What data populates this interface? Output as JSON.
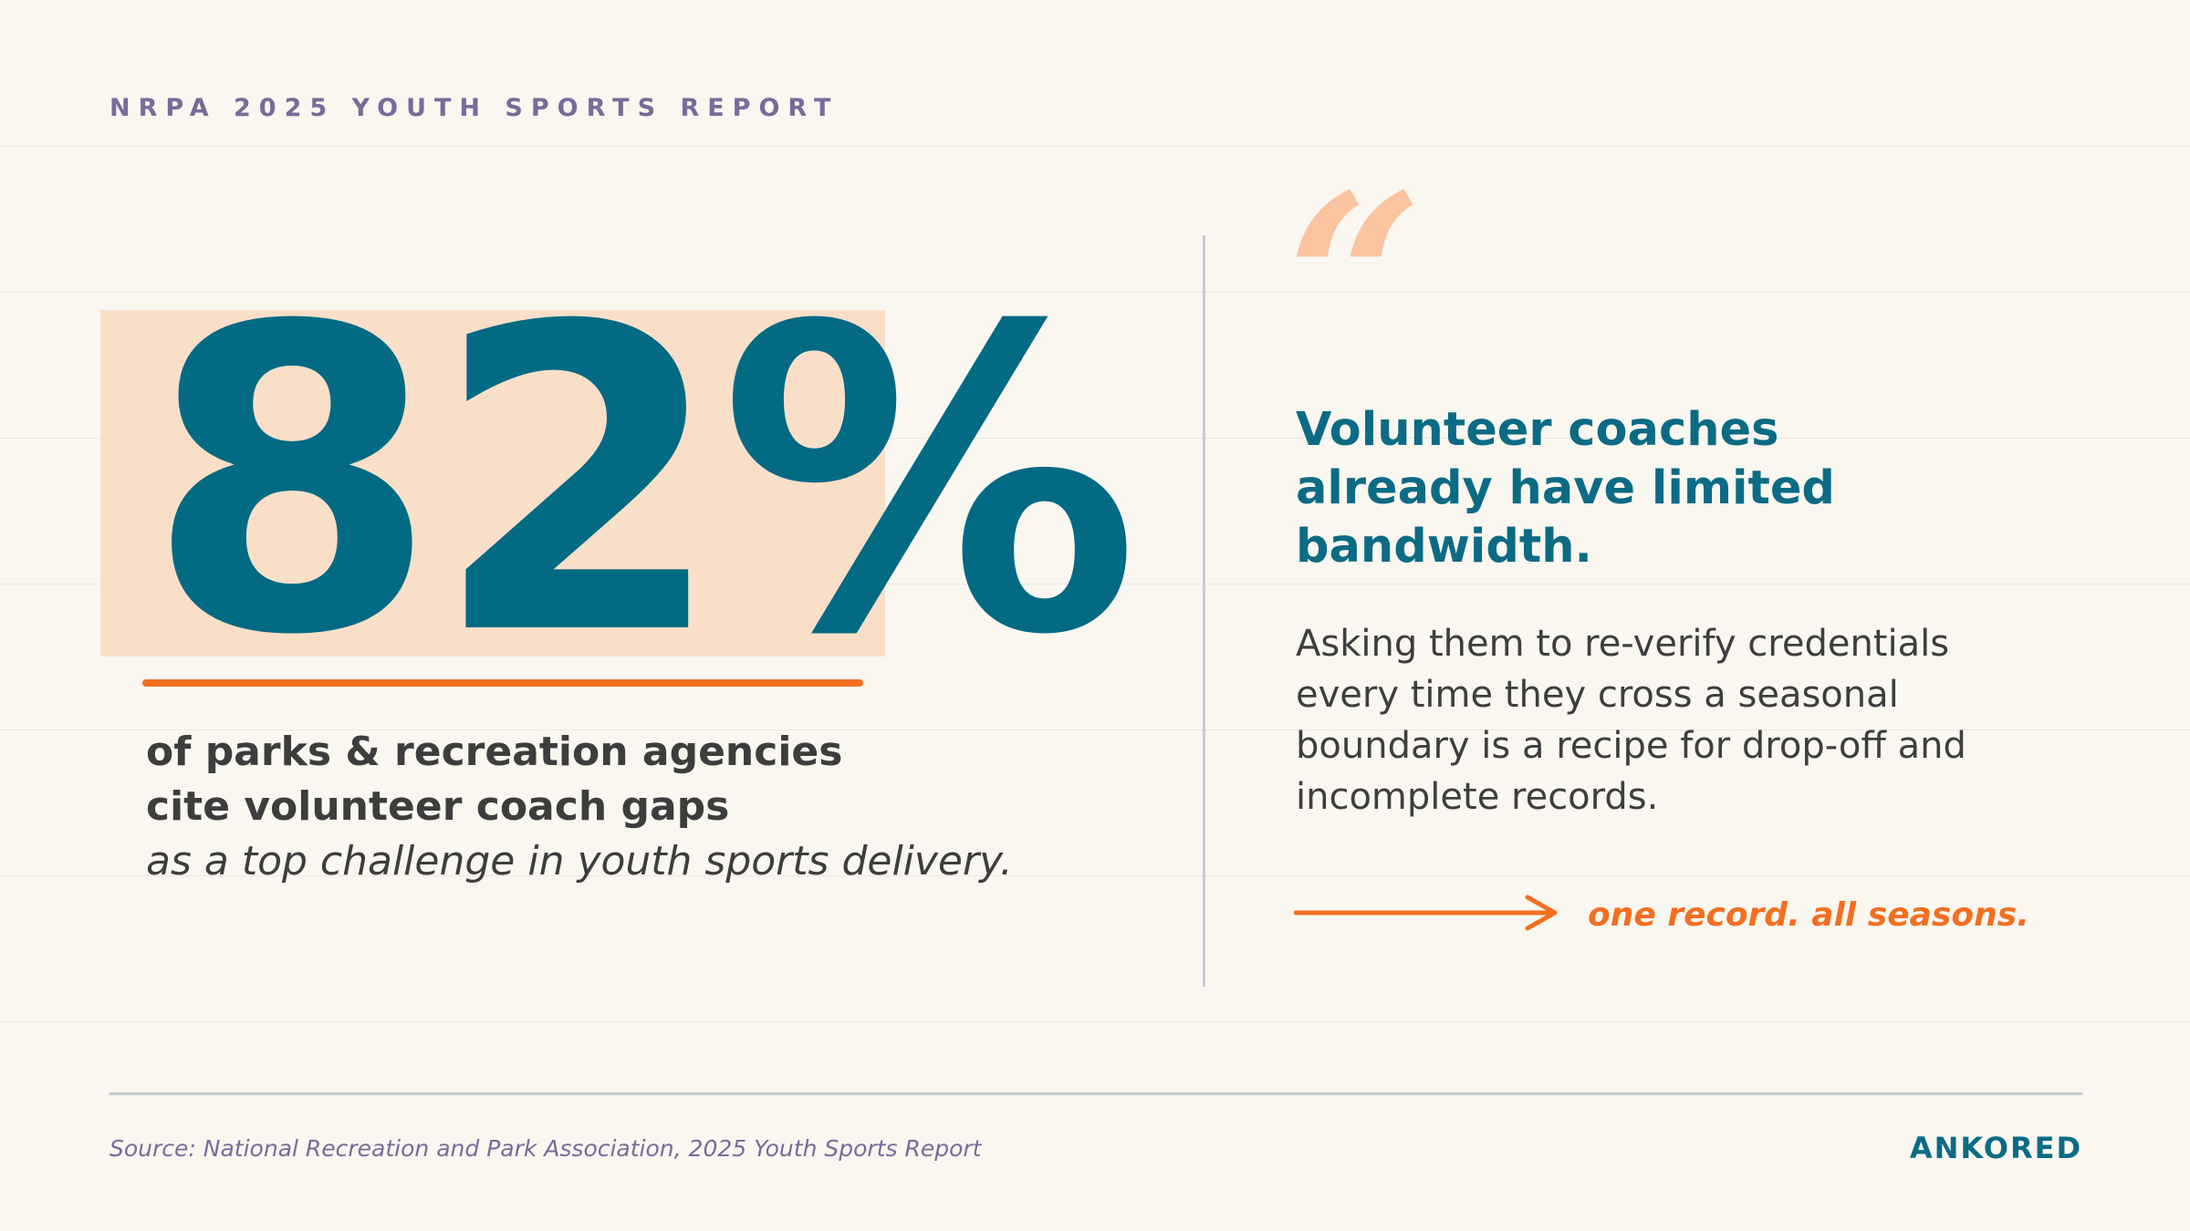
{
  "header": {
    "eyebrow": "NRPA 2025 YOUTH SPORTS REPORT"
  },
  "stat": {
    "value": "82%",
    "caption_line1": "of parks & recreation agencies",
    "caption_line2": "cite volunteer coach gaps",
    "caption_line3": "as a top challenge in youth sports delivery."
  },
  "quote": {
    "mark": "“",
    "headline": "Volunteer coaches already have limited bandwidth.",
    "body": "Asking them to re-verify credentials every time they cross a seasonal boundary is a recipe for drop-off and incomplete records.",
    "tagline": "one record. all seasons."
  },
  "footer": {
    "source": "Source: National Recreation and Park Association, 2025 Youth Sports Report",
    "brand": "ANKORED"
  },
  "colors": {
    "background": "#f9f7f0",
    "teal": "#036a84",
    "orange": "#f26f21",
    "peach_highlight": "#f9dfc8",
    "quote_mark": "#fbc4a1",
    "purple": "#7a6a9a",
    "body_text": "#3d3d3d"
  },
  "icons": {
    "tagline_arrow": "arrow-right-icon"
  }
}
